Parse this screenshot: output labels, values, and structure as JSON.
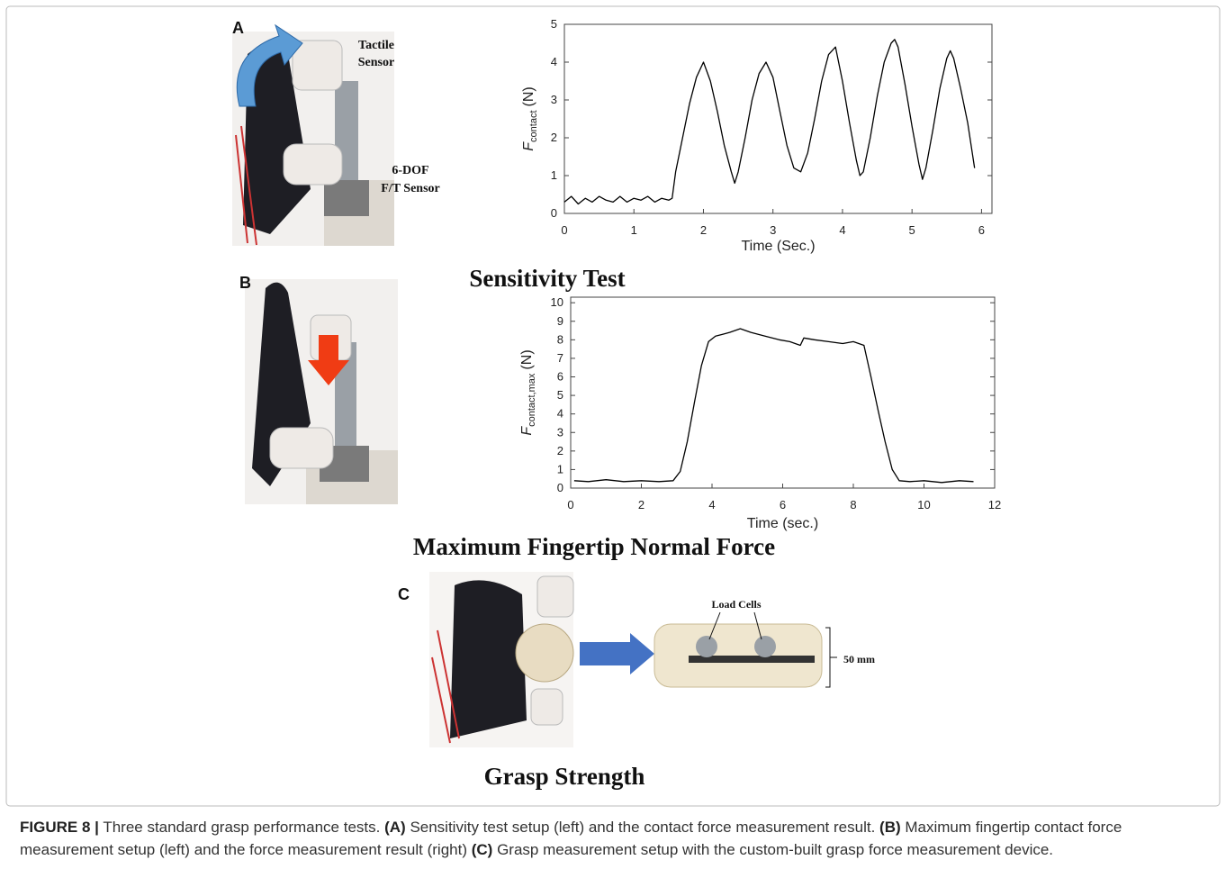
{
  "figure": {
    "panel_labels": [
      "A",
      "B",
      "C"
    ],
    "photo_a_labels": {
      "tactile_sensor": [
        "Tactile",
        "Sensor"
      ],
      "ft_sensor": [
        "6-DOF",
        "F/T Sensor"
      ]
    },
    "photo_c_labels": {
      "load_cells": "Load Cells",
      "size": "50 mm"
    },
    "panel_titles": [
      "Sensitivity Test",
      "Maximum Fingertip Normal Force",
      "Grasp Strength"
    ]
  },
  "chart_data": [
    {
      "type": "line",
      "xlabel": "Time (Sec.)",
      "ylabel": {
        "symbol": "F",
        "subscript": "contact",
        "unit": "(N)"
      },
      "color": "#000000",
      "x": [
        0,
        0.1,
        0.2,
        0.3,
        0.4,
        0.5,
        0.6,
        0.7,
        0.8,
        0.9,
        1.0,
        1.1,
        1.2,
        1.3,
        1.4,
        1.5,
        1.55,
        1.6,
        1.7,
        1.8,
        1.9,
        2.0,
        2.1,
        2.2,
        2.3,
        2.4,
        2.45,
        2.5,
        2.6,
        2.7,
        2.8,
        2.9,
        3.0,
        3.1,
        3.2,
        3.3,
        3.4,
        3.5,
        3.6,
        3.7,
        3.8,
        3.9,
        4.0,
        4.1,
        4.2,
        4.25,
        4.3,
        4.4,
        4.5,
        4.6,
        4.7,
        4.75,
        4.8,
        4.9,
        5.0,
        5.1,
        5.15,
        5.2,
        5.3,
        5.4,
        5.5,
        5.55,
        5.6,
        5.7,
        5.8,
        5.9
      ],
      "values": [
        0.3,
        0.45,
        0.25,
        0.4,
        0.3,
        0.45,
        0.35,
        0.3,
        0.45,
        0.3,
        0.4,
        0.35,
        0.45,
        0.3,
        0.4,
        0.35,
        0.4,
        1.1,
        2.0,
        2.9,
        3.6,
        4.0,
        3.5,
        2.7,
        1.8,
        1.1,
        0.8,
        1.1,
        2.0,
        3.0,
        3.7,
        4.0,
        3.6,
        2.7,
        1.8,
        1.2,
        1.1,
        1.6,
        2.5,
        3.5,
        4.2,
        4.4,
        3.5,
        2.4,
        1.4,
        1.0,
        1.1,
        2.0,
        3.1,
        4.0,
        4.5,
        4.6,
        4.4,
        3.4,
        2.3,
        1.3,
        0.9,
        1.2,
        2.2,
        3.3,
        4.1,
        4.3,
        4.1,
        3.3,
        2.4,
        1.2
      ],
      "xlim": [
        0,
        6.15
      ],
      "ylim": [
        0,
        5
      ],
      "xticks": [
        0,
        1,
        2,
        3,
        4,
        5,
        6
      ],
      "yticks": [
        0,
        1,
        2,
        3,
        4,
        5
      ]
    },
    {
      "type": "line",
      "xlabel": "Time (sec.)",
      "ylabel": {
        "symbol": "F",
        "subscript": "contact,max",
        "unit": "(N)"
      },
      "color": "#000000",
      "x": [
        0.1,
        0.5,
        1,
        1.5,
        2,
        2.5,
        2.9,
        3.1,
        3.3,
        3.5,
        3.7,
        3.9,
        4.1,
        4.3,
        4.5,
        4.8,
        5.1,
        5.5,
        5.9,
        6.2,
        6.5,
        6.6,
        6.9,
        7.3,
        7.7,
        8.0,
        8.3,
        8.5,
        8.7,
        8.9,
        9.1,
        9.3,
        9.6,
        10,
        10.5,
        11,
        11.4
      ],
      "values": [
        0.4,
        0.35,
        0.45,
        0.35,
        0.4,
        0.35,
        0.4,
        0.9,
        2.5,
        4.6,
        6.6,
        7.9,
        8.2,
        8.3,
        8.4,
        8.6,
        8.4,
        8.2,
        8.0,
        7.9,
        7.7,
        8.1,
        8.0,
        7.9,
        7.8,
        7.9,
        7.7,
        6.0,
        4.2,
        2.5,
        1.0,
        0.4,
        0.35,
        0.4,
        0.3,
        0.4,
        0.35
      ],
      "xlim": [
        0,
        12
      ],
      "ylim": [
        0,
        10.3
      ],
      "xticks": [
        0,
        2,
        4,
        6,
        8,
        10,
        12
      ],
      "yticks": [
        0,
        1,
        2,
        3,
        4,
        5,
        6,
        7,
        8,
        9,
        10
      ]
    }
  ],
  "caption": {
    "label": "FIGURE 8 |",
    "parts": [
      "Three standard grasp performance tests.",
      "(A)",
      "Sensitivity test setup (left) and the contact force measurement result.",
      "(B)",
      "Maximum fingertip contact force measurement setup (left) and the force measurement result (right)",
      "(C)",
      "Grasp measurement setup with the custom-built grasp force measurement device."
    ]
  }
}
